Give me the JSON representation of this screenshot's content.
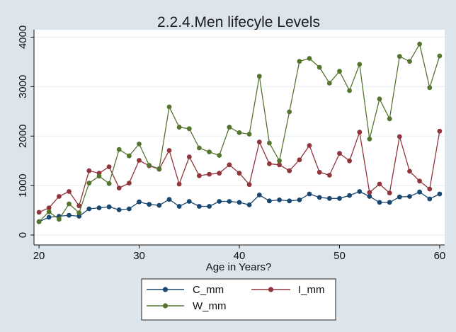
{
  "chart_data": {
    "type": "line",
    "title": "2.2.4.Men lifecyle Levels",
    "xlabel": "Age in Years?",
    "ylabel": "",
    "xlim": [
      19.5,
      60.5
    ],
    "ylim": [
      -200,
      4150
    ],
    "x_ticks": [
      20,
      30,
      40,
      50,
      60
    ],
    "y_ticks": [
      0,
      1000,
      2000,
      3000,
      4000
    ],
    "grid": "horizontal",
    "legend_position": "bottom",
    "x": [
      20,
      21,
      22,
      23,
      24,
      25,
      26,
      27,
      28,
      29,
      30,
      31,
      32,
      33,
      34,
      35,
      36,
      37,
      38,
      39,
      40,
      41,
      42,
      43,
      44,
      45,
      46,
      47,
      48,
      49,
      50,
      51,
      52,
      53,
      54,
      55,
      56,
      57,
      58,
      59,
      60
    ],
    "series": [
      {
        "name": "C_mm",
        "color": "#1a476f",
        "values": [
          270,
          360,
          380,
          400,
          380,
          530,
          550,
          570,
          510,
          530,
          670,
          620,
          600,
          720,
          580,
          680,
          580,
          580,
          680,
          680,
          660,
          610,
          810,
          690,
          710,
          690,
          710,
          830,
          760,
          740,
          740,
          800,
          880,
          780,
          660,
          660,
          770,
          780,
          870,
          730,
          830
        ]
      },
      {
        "name": "I_mm",
        "color": "#90353b",
        "values": [
          460,
          550,
          780,
          880,
          590,
          1300,
          1250,
          1380,
          950,
          1050,
          1510,
          1400,
          1330,
          1710,
          1030,
          1580,
          1200,
          1230,
          1250,
          1420,
          1250,
          1020,
          1880,
          1440,
          1420,
          1300,
          1520,
          1810,
          1270,
          1210,
          1650,
          1500,
          2080,
          860,
          1030,
          850,
          1990,
          1290,
          1090,
          930,
          2100
        ]
      },
      {
        "name": "W_mm",
        "color": "#55752f",
        "values": [
          270,
          470,
          320,
          630,
          450,
          1050,
          1190,
          1040,
          1730,
          1600,
          1840,
          1410,
          1340,
          2590,
          2180,
          2150,
          1760,
          1680,
          1610,
          2180,
          2070,
          2040,
          3210,
          1860,
          1500,
          2490,
          3510,
          3570,
          3390,
          3070,
          3310,
          2920,
          3450,
          1940,
          2750,
          2350,
          3610,
          3510,
          3860,
          2980,
          3620
        ]
      }
    ]
  }
}
